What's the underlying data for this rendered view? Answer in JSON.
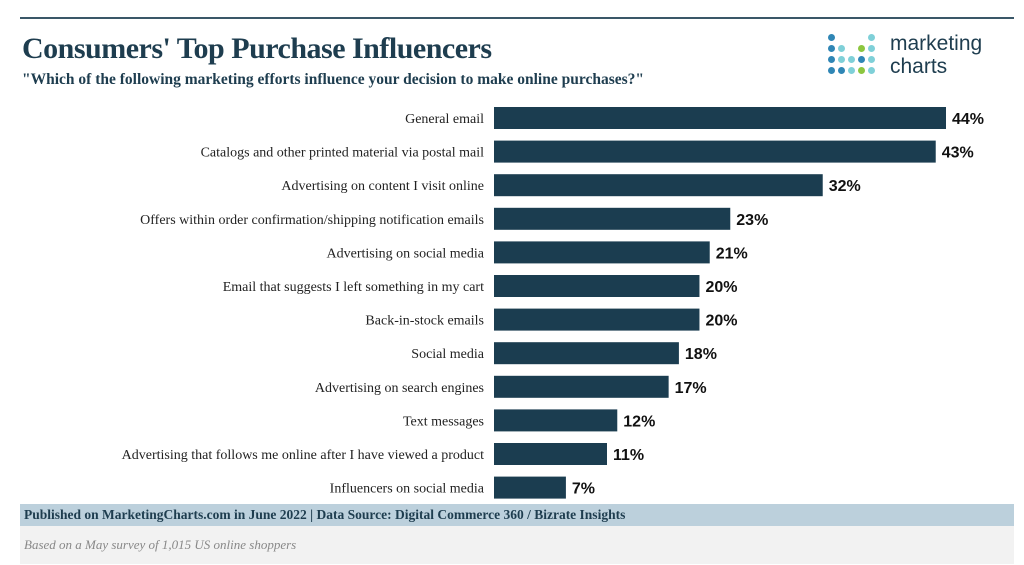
{
  "title": "Consumers' Top Purchase Influencers",
  "subtitle": "\"Which of the following marketing efforts influence your decision to make online purchases?\"",
  "logo": {
    "line1": "marketing",
    "line2": "charts",
    "dot_colors": [
      "#2f86b5",
      "#7fd0d8",
      "#8cc63f"
    ]
  },
  "footer": {
    "source": "Published on MarketingCharts.com in June 2022 | Data Source: Digital Commerce 360 / Bizrate Insights",
    "note": "Based on a May survey of 1,015 US online shoppers"
  },
  "colors": {
    "bar": "#1b3d50",
    "text": "#1e3d4f"
  },
  "chart_data": {
    "type": "bar",
    "orientation": "horizontal",
    "categories": [
      "General email",
      "Catalogs and other printed material via postal mail",
      "Advertising on content I visit online",
      "Offers within order confirmation/shipping notification emails",
      "Advertising on social media",
      "Email that suggests I left something in my cart",
      "Back-in-stock emails",
      "Social media",
      "Advertising on search engines",
      "Text messages",
      "Advertising that follows me online after I have viewed a product",
      "Influencers on social media"
    ],
    "values": [
      44,
      43,
      32,
      23,
      21,
      20,
      20,
      18,
      17,
      12,
      11,
      7
    ],
    "value_suffix": "%",
    "xlim": [
      0,
      44
    ],
    "grid": false
  }
}
